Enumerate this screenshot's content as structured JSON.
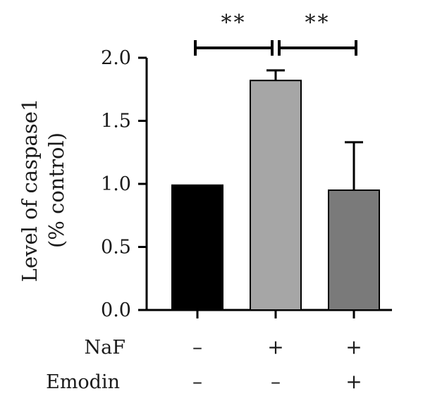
{
  "chart_data": {
    "type": "bar",
    "ylabel_lines": [
      "Level of caspase1",
      "(% control)"
    ],
    "ylim": [
      0,
      2.0
    ],
    "yticks": [
      "0.0",
      "0.5",
      "1.0",
      "1.5",
      "2.0"
    ],
    "bars": [
      {
        "value": 0.99,
        "error": 0,
        "color": "#000000"
      },
      {
        "value": 1.82,
        "error": 0.08,
        "color": "#a6a6a6"
      },
      {
        "value": 0.95,
        "error": 0.38,
        "color": "#7a7a7a"
      }
    ],
    "conditions": [
      {
        "label": "NaF",
        "values": [
          "–",
          "+",
          "+"
        ]
      },
      {
        "label": "Emodin",
        "values": [
          "–",
          "–",
          "+"
        ]
      }
    ],
    "significance": [
      {
        "from": 0,
        "to": 1,
        "label": "**"
      },
      {
        "from": 1,
        "to": 2,
        "label": "**"
      }
    ],
    "grid": false,
    "legend": "none"
  }
}
